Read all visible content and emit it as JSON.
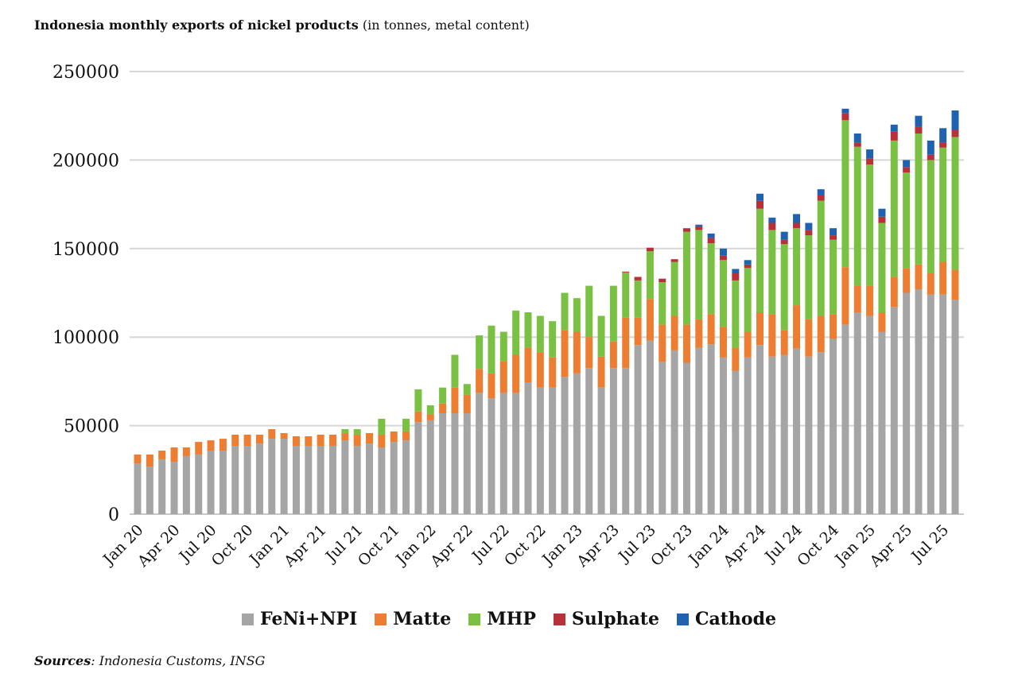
{
  "title": {
    "bold": "Indonesia monthly exports of nickel products",
    "rest": "(in tonnes, metal content)"
  },
  "sources": {
    "label": "Sources",
    "text": ": Indonesia Customs, INSG"
  },
  "chart_data": {
    "type": "bar",
    "stacked": true,
    "ylim": [
      0,
      250000
    ],
    "yticks": [
      "0",
      "50000",
      "100000",
      "150000",
      "200000",
      "250000"
    ],
    "grid": true,
    "legend_placement": "bottom",
    "tick_label_every": 3,
    "categories": [
      "Jan 20",
      "Feb 20",
      "Mar 20",
      "Apr 20",
      "May 20",
      "Jun 20",
      "Jul 20",
      "Aug 20",
      "Sep 20",
      "Oct 20",
      "Nov 20",
      "Dec 20",
      "Jan 21",
      "Feb 21",
      "Mar 21",
      "Apr 21",
      "May 21",
      "Jun 21",
      "Jul 21",
      "Aug 21",
      "Sep 21",
      "Oct 21",
      "Nov 21",
      "Dec 21",
      "Jan 22",
      "Feb 22",
      "Mar 22",
      "Apr 22",
      "May 22",
      "Jun 22",
      "Jul 22",
      "Aug 22",
      "Sep 22",
      "Oct 22",
      "Nov 22",
      "Dec 22",
      "Jan 23",
      "Feb 23",
      "Mar 23",
      "Apr 23",
      "May 23",
      "Jun 23",
      "Jul 23",
      "Aug 23",
      "Sep 23",
      "Oct 23",
      "Nov 23",
      "Dec 23",
      "Jan 24",
      "Feb 24",
      "Mar 24",
      "Apr 24",
      "May 24",
      "Jun 24",
      "Jul 24",
      "Aug 24",
      "Sep 24",
      "Oct 24",
      "Nov 24",
      "Dec 24",
      "Jan 25",
      "Feb 25",
      "Mar 25",
      "Apr 25",
      "May 25",
      "Jun 25",
      "Jul 25",
      "Aug 25"
    ],
    "series": [
      {
        "name": "FeNi+NPI",
        "color": "#A5A5A5",
        "values": [
          28700,
          26900,
          31000,
          29600,
          32800,
          33700,
          35900,
          35900,
          38600,
          38600,
          39900,
          42600,
          42600,
          38600,
          38600,
          38600,
          38600,
          41700,
          38600,
          39900,
          37700,
          40800,
          41700,
          52000,
          53000,
          57000,
          57000,
          57000,
          68500,
          65500,
          68500,
          68500,
          74500,
          71500,
          71500,
          77500,
          79500,
          82500,
          71500,
          82500,
          82500,
          95500,
          98000,
          86000,
          92500,
          85500,
          94000,
          96000,
          88500,
          81000,
          88500,
          95500,
          89000,
          90000,
          93500,
          89000,
          91500,
          99000,
          107000,
          114000,
          112000,
          103000,
          117000,
          125000,
          127000,
          124000,
          124000,
          121000
        ]
      },
      {
        "name": "Matte",
        "color": "#ED7D31",
        "values": [
          5000,
          6800,
          4900,
          8100,
          4900,
          7100,
          5800,
          6700,
          6300,
          6300,
          5000,
          5400,
          3200,
          5400,
          5400,
          6300,
          6300,
          4100,
          6300,
          5900,
          7200,
          5900,
          5000,
          6000,
          3500,
          5500,
          14500,
          10500,
          13500,
          14000,
          18000,
          21500,
          19500,
          20000,
          17000,
          26500,
          23500,
          17500,
          17500,
          15000,
          28500,
          15500,
          23500,
          21000,
          19500,
          21500,
          16000,
          17000,
          17000,
          13000,
          14500,
          18500,
          24000,
          14000,
          24500,
          21000,
          20500,
          14000,
          32500,
          15000,
          17000,
          11000,
          17000,
          14000,
          14000,
          12000,
          18500,
          17000
        ]
      },
      {
        "name": "MHP",
        "color": "#7AC143",
        "values": [
          0,
          0,
          0,
          0,
          0,
          0,
          0,
          0,
          0,
          0,
          0,
          0,
          0,
          0,
          0,
          0,
          0,
          2200,
          3100,
          0,
          9000,
          0,
          7200,
          12500,
          5000,
          9000,
          18500,
          6000,
          19000,
          27000,
          16500,
          25000,
          20000,
          20500,
          20500,
          21000,
          19000,
          29000,
          23000,
          31500,
          25500,
          21000,
          27000,
          24000,
          30500,
          52500,
          50500,
          40000,
          38000,
          38000,
          36000,
          58500,
          47500,
          48500,
          43500,
          47500,
          65000,
          42000,
          83000,
          78500,
          68500,
          50500,
          77000,
          54000,
          74000,
          64000,
          64500,
          75000
        ]
      },
      {
        "name": "Sulphate",
        "color": "#B8313A",
        "values": [
          0,
          0,
          0,
          0,
          0,
          0,
          0,
          0,
          0,
          0,
          0,
          0,
          0,
          0,
          0,
          0,
          0,
          0,
          0,
          0,
          0,
          0,
          0,
          0,
          0,
          0,
          0,
          0,
          0,
          0,
          0,
          0,
          0,
          0,
          0,
          0,
          0,
          0,
          0,
          0,
          500,
          2000,
          2000,
          2000,
          1500,
          2000,
          2000,
          3000,
          2500,
          4000,
          2000,
          4500,
          4000,
          2500,
          3000,
          3000,
          3000,
          2500,
          4000,
          2500,
          3500,
          3500,
          5000,
          3000,
          4000,
          3000,
          3000,
          4000
        ]
      },
      {
        "name": "Cathode",
        "color": "#1F62B0",
        "values": [
          0,
          0,
          0,
          0,
          0,
          0,
          0,
          0,
          0,
          0,
          0,
          0,
          0,
          0,
          0,
          0,
          0,
          0,
          0,
          0,
          0,
          0,
          0,
          0,
          0,
          0,
          0,
          0,
          0,
          0,
          0,
          0,
          0,
          0,
          0,
          0,
          0,
          0,
          0,
          0,
          0,
          0,
          0,
          0,
          0,
          0,
          1000,
          2500,
          4000,
          2500,
          2500,
          4000,
          3000,
          4500,
          5000,
          4000,
          3500,
          4000,
          2500,
          5000,
          5000,
          4500,
          4000,
          4000,
          6000,
          8000,
          8000,
          11000
        ]
      }
    ]
  }
}
